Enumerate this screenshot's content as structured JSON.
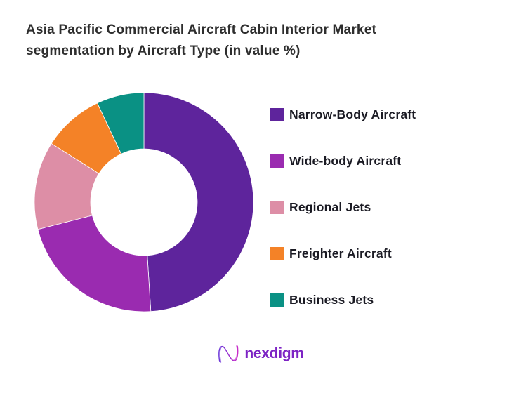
{
  "title": {
    "line1": "Asia Pacific Commercial Aircraft Cabin Interior Market",
    "line2": "segmentation by Aircraft Type (in value %)"
  },
  "legend": {
    "items": [
      {
        "label": "Narrow-Body Aircraft",
        "color": "#5E249C"
      },
      {
        "label": "Wide-body Aircraft",
        "color": "#9A2BB0"
      },
      {
        "label": "Regional Jets",
        "color": "#DD8EA6"
      },
      {
        "label": "Freighter Aircraft",
        "color": "#F48227"
      },
      {
        "label": "Business Jets",
        "color": "#0A9184"
      }
    ]
  },
  "chart_data": {
    "type": "pie",
    "subtype": "donut",
    "title": "Asia Pacific Commercial Aircraft Cabin Interior Market segmentation by Aircraft Type (in value %)",
    "categories": [
      "Narrow-Body Aircraft",
      "Wide-body Aircraft",
      "Regional Jets",
      "Freighter Aircraft",
      "Business Jets"
    ],
    "values": [
      49,
      22,
      13,
      9,
      7
    ],
    "unit": "percent",
    "colors": [
      "#5E249C",
      "#9A2BB0",
      "#DD8EA6",
      "#F48227",
      "#0A9184"
    ],
    "start_angle_deg": 0,
    "direction": "clockwise",
    "inner_radius_ratio": 0.49,
    "legend_position": "right",
    "data_labels": false
  },
  "footer": {
    "logo_text": "nexdigm",
    "logo_color": "#7D23C4",
    "logo_gradient": [
      "#6A35D9",
      "#C82CC8"
    ]
  }
}
